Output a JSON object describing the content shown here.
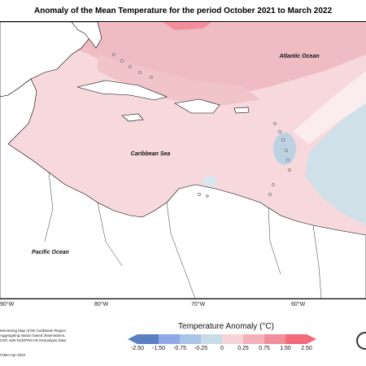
{
  "title": "Anomaly of the Mean Temperature for the period October 2021 to March 2022",
  "map_labels": {
    "atlantic": "Atlantic Ocean",
    "caribbean": "Caribbean Sea",
    "pacific": "Pacific Ocean"
  },
  "longitudes": [
    "90°W",
    "80°W",
    "70°W",
    "60°W"
  ],
  "credits": {
    "lines": [
      "Monitoring Map of the Caribbean Region.",
      "Aggregating station based observations,",
      "CDF, with NCEP/NCAR Reanalysis Data"
    ],
    "date": "©IMH Apr-2022"
  },
  "legend": {
    "title": "Temperature Anomaly (°C)",
    "ticks": [
      "-2.50",
      "-1.50",
      "-0.75",
      "-0.25",
      "0",
      "0.25",
      "0.75",
      "1.50",
      "2.50"
    ],
    "colors": [
      "#5b7fc0",
      "#8fa9e8",
      "#a9c4e8",
      "#c8dce8",
      "#ffffff",
      "#f7d4d8",
      "#f4b1ba",
      "#ef8f9c",
      "#f36b7a"
    ]
  },
  "colors": {
    "anomaly_light": "#f8d9dd",
    "anomaly_mid": "#f3c4ca",
    "anomaly_strong": "#e9a9b1",
    "anomaly_cool": "#c8dce8",
    "land": "#ffffff",
    "coast": "#000000"
  }
}
